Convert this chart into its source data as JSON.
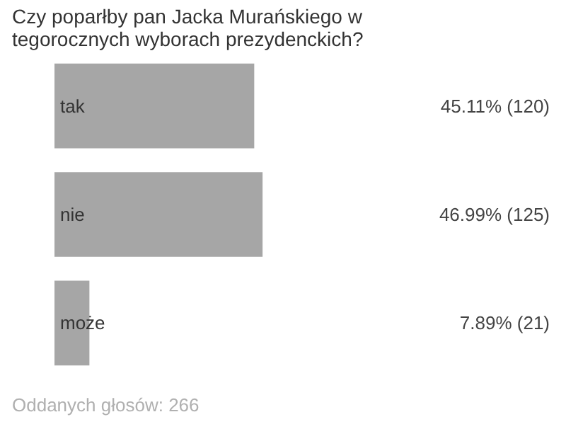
{
  "chart_data": {
    "type": "bar",
    "orientation": "horizontal",
    "title": "Czy poparłby pan Jacka Murańskiego w tegorocznych wyborach prezydenckich?",
    "categories": [
      "tak",
      "nie",
      "może"
    ],
    "values": [
      45.11,
      46.99,
      7.89
    ],
    "value_labels": [
      "45.11% (120)",
      "46.99% (125)",
      "7.89% (21)"
    ],
    "color": "#a6a6a6",
    "annotations": [
      "Oddanych głosów: 266"
    ]
  }
}
